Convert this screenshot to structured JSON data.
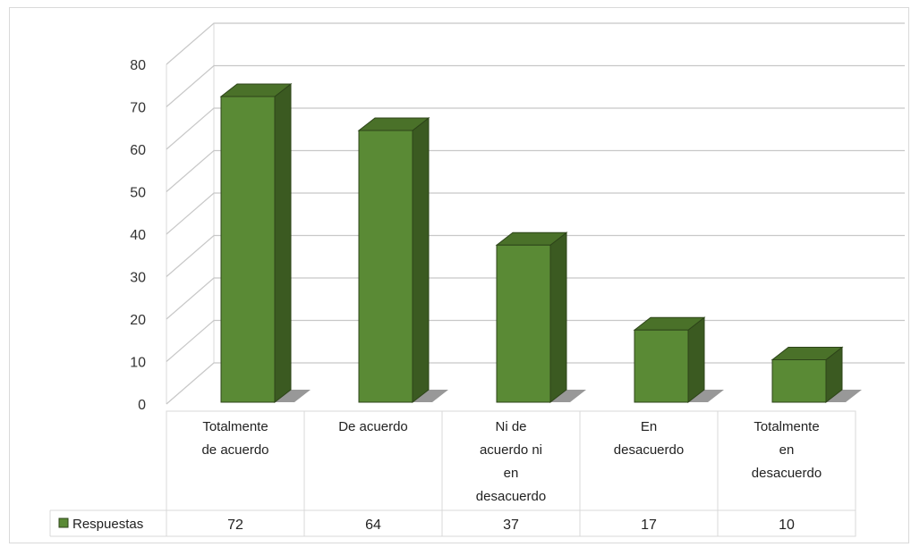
{
  "chart_data": {
    "type": "bar",
    "categories": [
      [
        "Totalmente",
        "de acuerdo"
      ],
      [
        "De acuerdo"
      ],
      [
        "Ni de",
        "acuerdo ni",
        "en",
        "desacuerdo"
      ],
      [
        "En",
        "desacuerdo"
      ],
      [
        "Totalmente",
        "en",
        "desacuerdo"
      ]
    ],
    "series": [
      {
        "name": "Respuestas",
        "values": [
          72,
          64,
          37,
          17,
          10
        ]
      }
    ],
    "yticks": [
      "0",
      "10",
      "20",
      "30",
      "40",
      "50",
      "60",
      "70",
      "80"
    ],
    "ylim": [
      0,
      80
    ],
    "grid": true,
    "legend": "table-left",
    "data_table": true,
    "colors": {
      "bar_front": "#5a8a35",
      "bar_side": "#3b5a21",
      "bar_top": "#4a7129",
      "bar_outline": "#2d4419",
      "grid": "#c8c8c8",
      "wall": "#d9d9d9"
    }
  }
}
